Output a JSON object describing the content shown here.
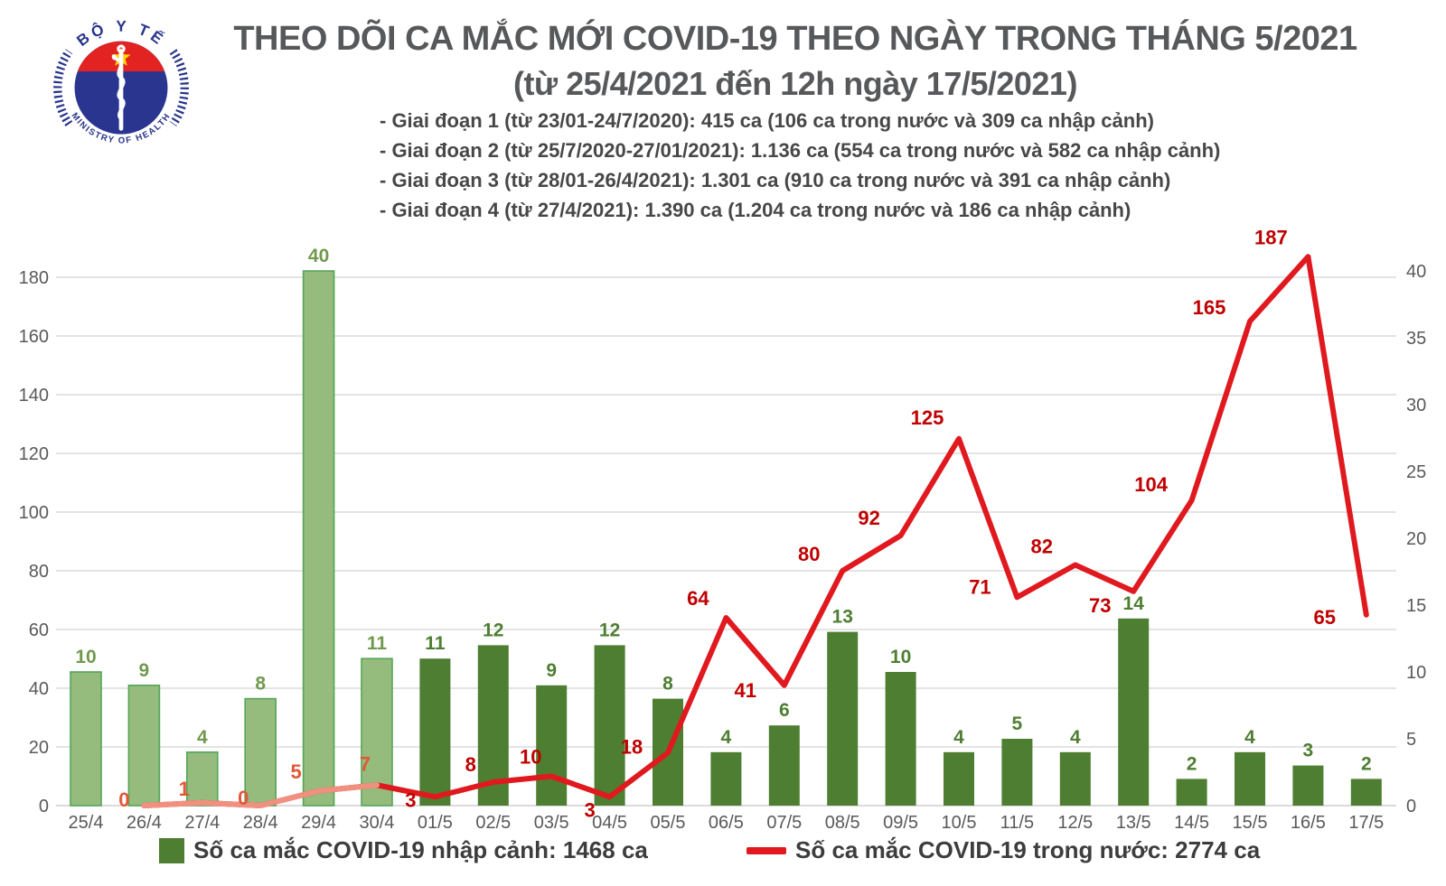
{
  "header": {
    "logo": {
      "top_text": "BỘ Y TẾ",
      "bottom_text": "MINISTRY OF HEALTH"
    },
    "title": "THEO DÕI CA MẮC MỚI COVID-19 THEO NGÀY TRONG THÁNG 5/2021",
    "subtitle": "(từ 25/4/2021 đến 12h ngày 17/5/2021)",
    "phases": [
      "- Giai đoạn 1 (từ 23/01-24/7/2020): 415 ca (106 ca trong nước và 309 ca nhập cảnh)",
      "- Giai đoạn 2 (từ 25/7/2020-27/01/2021): 1.136 ca (554 ca trong nước và 582 ca nhập cảnh)",
      "- Giai đoạn 3 (từ 28/01-26/4/2021): 1.301 ca (910 ca trong nước và 391 ca nhập cảnh)",
      "- Giai đoạn 4 (từ 27/4/2021): 1.390 ca (1.204 ca trong nước và 186 ca nhập cảnh)"
    ]
  },
  "chart_data": {
    "type": "combo-bar-line",
    "categories": [
      "25/4",
      "26/4",
      "27/4",
      "28/4",
      "29/4",
      "30/4",
      "01/5",
      "02/5",
      "03/5",
      "04/5",
      "05/5",
      "06/5",
      "07/5",
      "08/5",
      "09/5",
      "10/5",
      "11/5",
      "12/5",
      "13/5",
      "14/5",
      "15/5",
      "16/5",
      "17/5"
    ],
    "april_category_count": 6,
    "series": [
      {
        "name": "Số ca mắc COVID-19 nhập cảnh",
        "type": "bar",
        "axis": "right",
        "values": [
          10,
          9,
          4,
          8,
          40,
          11,
          11,
          12,
          9,
          12,
          8,
          4,
          6,
          13,
          10,
          4,
          5,
          4,
          14,
          2,
          4,
          3,
          2
        ]
      },
      {
        "name": "Số ca mắc COVID-19 trong nước",
        "type": "line",
        "axis": "left",
        "values": [
          null,
          0,
          1,
          0,
          5,
          7,
          3,
          8,
          10,
          3,
          18,
          64,
          41,
          80,
          92,
          125,
          71,
          82,
          73,
          104,
          165,
          187,
          65
        ]
      }
    ],
    "left_axis": {
      "ticks": [
        0,
        20,
        40,
        60,
        80,
        100,
        120,
        140,
        160,
        180
      ],
      "range": [
        0,
        180
      ]
    },
    "right_axis": {
      "ticks": [
        0,
        5,
        10,
        15,
        20,
        25,
        30,
        35,
        40
      ],
      "range": [
        0,
        41
      ]
    },
    "grid": true,
    "legend_position": "bottom",
    "colors": {
      "bar_april_fill": "#95bb7d",
      "bar_april_stroke": "#55a559",
      "bar_may_fill": "#4e7e32",
      "bar_label_april": "#71994e",
      "bar_label_may": "#4e7e32",
      "line_april": "#f0917f",
      "line_may": "#e0191f",
      "line_label_april": "#e25737",
      "line_label_may": "#c00000",
      "grid_line": "#dcdcdc",
      "axis_text": "#595959"
    }
  },
  "legend": {
    "bar_label": "Số ca mắc COVID-19 nhập cảnh: 1468 ca",
    "line_label": "Số ca mắc COVID-19 trong nước: 2774 ca"
  },
  "logo_colors": {
    "blue": "#27348b",
    "red": "#e32322",
    "star": "#ffd400"
  }
}
